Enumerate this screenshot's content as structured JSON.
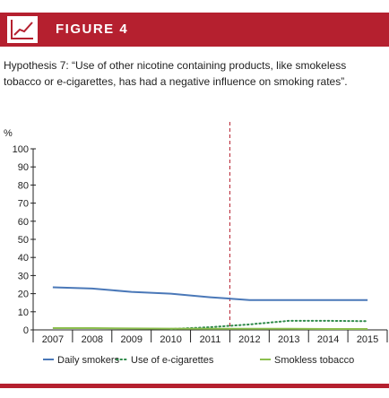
{
  "header": {
    "title": "FIGURE 4",
    "logo_icon": "line-chart-icon",
    "color": "#b5202f"
  },
  "caption": "Hypothesis 7: “Use of other nicotine containing products, like smokeless tobacco or e-cigarettes, has had a negative influence on smoking rates”.",
  "chart_data": {
    "type": "line",
    "title": "",
    "xlabel": "",
    "ylabel": "%",
    "ylim": [
      0,
      100
    ],
    "yticks": [
      0,
      10,
      20,
      30,
      40,
      50,
      60,
      70,
      80,
      90,
      100
    ],
    "categories": [
      "2007",
      "2008",
      "2009",
      "2010",
      "2011",
      "2012",
      "2013",
      "2014",
      "2015"
    ],
    "vertical_marker": {
      "x": 2011.5,
      "style": "dashed",
      "color": "#b5202f"
    },
    "series": [
      {
        "name": "Daily smokers",
        "color": "#4a78b8",
        "style": "solid",
        "points": [
          [
            2007,
            23.5
          ],
          [
            2008,
            22.8
          ],
          [
            2009,
            21
          ],
          [
            2010,
            20
          ],
          [
            2011,
            18
          ],
          [
            2012,
            16.5
          ],
          [
            2013,
            16.5
          ],
          [
            2014,
            16.5
          ],
          [
            2015,
            16.5
          ]
        ]
      },
      {
        "name": "Use of e-cigarettes",
        "color": "#2f8a4a",
        "style": "dotted",
        "points": [
          [
            2010,
            0.5
          ],
          [
            2011,
            1.5
          ],
          [
            2012,
            3
          ],
          [
            2013,
            5
          ],
          [
            2014,
            5
          ],
          [
            2015,
            4.8
          ]
        ]
      },
      {
        "name": "Smokless tobacco",
        "color": "#8cbf4e",
        "style": "solid",
        "points": [
          [
            2007,
            1
          ],
          [
            2008,
            1
          ],
          [
            2009,
            0.8
          ],
          [
            2010,
            0.7
          ],
          [
            2011,
            0.6
          ],
          [
            2012,
            0.6
          ],
          [
            2013,
            0.6
          ],
          [
            2014,
            0.5
          ],
          [
            2015,
            0.5
          ]
        ]
      }
    ],
    "legend": {
      "placement": "bottom"
    },
    "grid": false
  }
}
